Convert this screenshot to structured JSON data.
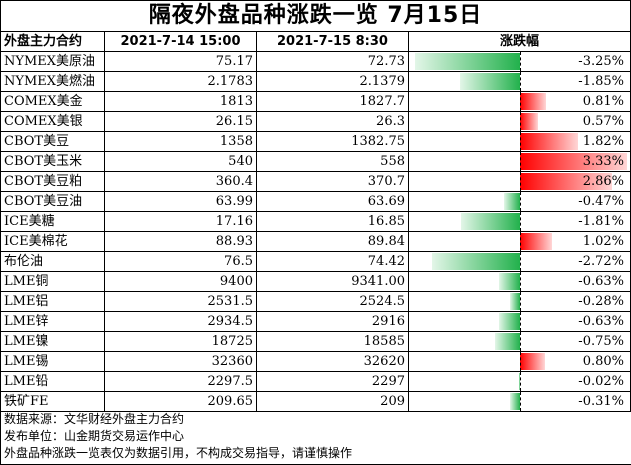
{
  "title": "隔夜外盘品种涨跌一览 7月15日",
  "chart_data": {
    "type": "table",
    "headers": [
      "外盘主力合约",
      "2021-7-14 15:00",
      "2021-7-15 8:30",
      "涨跌幅"
    ],
    "rows": [
      {
        "name": "NYMEX美原油",
        "prev": "75.17",
        "cur": "72.73",
        "change": -3.25,
        "change_label": "-3.25%"
      },
      {
        "name": "NYMEX美燃油",
        "prev": "2.1783",
        "cur": "2.1379",
        "change": -1.85,
        "change_label": "-1.85%"
      },
      {
        "name": "COMEX美金",
        "prev": "1813",
        "cur": "1827.7",
        "change": 0.81,
        "change_label": "0.81%"
      },
      {
        "name": "COMEX美银",
        "prev": "26.15",
        "cur": "26.3",
        "change": 0.57,
        "change_label": "0.57%"
      },
      {
        "name": "CBOT美豆",
        "prev": "1358",
        "cur": "1382.75",
        "change": 1.82,
        "change_label": "1.82%"
      },
      {
        "name": "CBOT美玉米",
        "prev": "540",
        "cur": "558",
        "change": 3.33,
        "change_label": "3.33%"
      },
      {
        "name": "CBOT美豆粕",
        "prev": "360.4",
        "cur": "370.7",
        "change": 2.86,
        "change_label": "2.86%"
      },
      {
        "name": "CBOT美豆油",
        "prev": "63.99",
        "cur": "63.69",
        "change": -0.47,
        "change_label": "-0.47%"
      },
      {
        "name": "ICE美糖",
        "prev": "17.16",
        "cur": "16.85",
        "change": -1.81,
        "change_label": "-1.81%"
      },
      {
        "name": "ICE美棉花",
        "prev": "88.93",
        "cur": "89.84",
        "change": 1.02,
        "change_label": "1.02%"
      },
      {
        "name": "布伦油",
        "prev": "76.5",
        "cur": "74.42",
        "change": -2.72,
        "change_label": "-2.72%"
      },
      {
        "name": "LME铜",
        "prev": "9400",
        "cur": "9341.00",
        "change": -0.63,
        "change_label": "-0.63%"
      },
      {
        "name": "LME铝",
        "prev": "2531.5",
        "cur": "2524.5",
        "change": -0.28,
        "change_label": "-0.28%"
      },
      {
        "name": "LME锌",
        "prev": "2934.5",
        "cur": "2916",
        "change": -0.63,
        "change_label": "-0.63%"
      },
      {
        "name": "LME镍",
        "prev": "18725",
        "cur": "18585",
        "change": -0.75,
        "change_label": "-0.75%"
      },
      {
        "name": "LME锡",
        "prev": "32360",
        "cur": "32620",
        "change": 0.8,
        "change_label": "0.80%"
      },
      {
        "name": "LME铅",
        "prev": "2297.5",
        "cur": "2297",
        "change": -0.02,
        "change_label": "-0.02%"
      },
      {
        "name": "铁矿FE",
        "prev": "209.65",
        "cur": "209",
        "change": -0.31,
        "change_label": "-0.31%"
      }
    ],
    "change_max_abs": 3.33,
    "colors": {
      "up": "#ff0000",
      "down": "#22b14c"
    }
  },
  "footer": {
    "line1": "数据来源：文华财经外盘主力合约",
    "line2": "发布单位：山金期货交易运作中心",
    "line3": "外盘品种涨跌一览表仅为数据引用，不构成交易指导，请谨慎操作"
  }
}
